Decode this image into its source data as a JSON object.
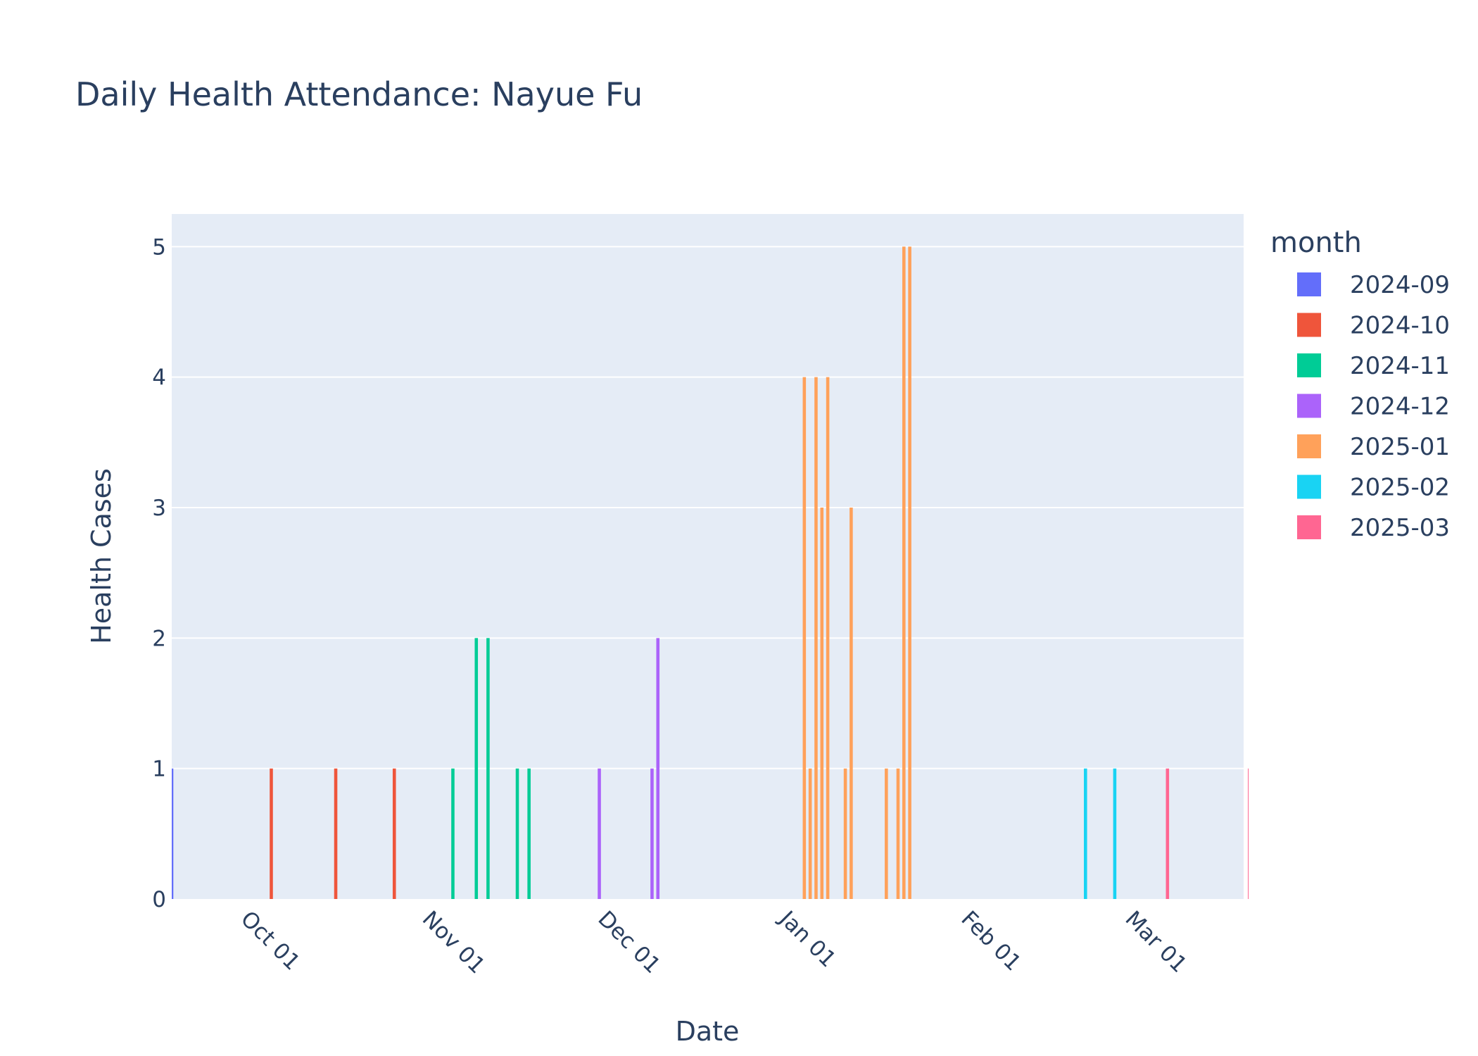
{
  "chart_data": {
    "type": "bar",
    "title": "Daily Health Attendance: Nayue Fu",
    "xlabel": "Date",
    "ylabel": "Health Cases",
    "ylim": [
      0,
      5.25
    ],
    "xlim": [
      "2024-09-17",
      "2025-03-19"
    ],
    "x_ticks": [
      {
        "date": "2024-10-01",
        "label": "Oct 01"
      },
      {
        "date": "2024-11-01",
        "label": "Nov 01"
      },
      {
        "date": "2024-12-01",
        "label": "Dec 01"
      },
      {
        "date": "2025-01-01",
        "label": "Jan 01"
      },
      {
        "date": "2025-02-01",
        "label": "Feb 01"
      },
      {
        "date": "2025-03-01",
        "label": "Mar 01"
      }
    ],
    "y_ticks": [
      0,
      1,
      2,
      3,
      4,
      5
    ],
    "grid": true,
    "legend": {
      "title": "month",
      "position": "right"
    },
    "plot_bg": "#e5ecf6",
    "series": [
      {
        "name": "2024-09",
        "color": "#636efa",
        "points": [
          {
            "x": "2024-09-17",
            "y": 1
          }
        ]
      },
      {
        "name": "2024-10",
        "color": "#ef553b",
        "points": [
          {
            "x": "2024-10-04",
            "y": 1
          },
          {
            "x": "2024-10-15",
            "y": 1
          },
          {
            "x": "2024-10-25",
            "y": 1
          }
        ]
      },
      {
        "name": "2024-11",
        "color": "#00cc96",
        "points": [
          {
            "x": "2024-11-04",
            "y": 1
          },
          {
            "x": "2024-11-08",
            "y": 2
          },
          {
            "x": "2024-11-10",
            "y": 2
          },
          {
            "x": "2024-11-15",
            "y": 1
          },
          {
            "x": "2024-11-17",
            "y": 1
          }
        ]
      },
      {
        "name": "2024-12",
        "color": "#ab63fa",
        "points": [
          {
            "x": "2024-11-29",
            "y": 1
          },
          {
            "x": "2024-12-08",
            "y": 1
          },
          {
            "x": "2024-12-09",
            "y": 2
          }
        ]
      },
      {
        "name": "2025-01",
        "color": "#ffa15a",
        "points": [
          {
            "x": "2025-01-03",
            "y": 4
          },
          {
            "x": "2025-01-04",
            "y": 1
          },
          {
            "x": "2025-01-05",
            "y": 4
          },
          {
            "x": "2025-01-06",
            "y": 3
          },
          {
            "x": "2025-01-07",
            "y": 4
          },
          {
            "x": "2025-01-10",
            "y": 1
          },
          {
            "x": "2025-01-11",
            "y": 3
          },
          {
            "x": "2025-01-17",
            "y": 1
          },
          {
            "x": "2025-01-19",
            "y": 1
          },
          {
            "x": "2025-01-20",
            "y": 5
          },
          {
            "x": "2025-01-21",
            "y": 5
          }
        ]
      },
      {
        "name": "2025-02",
        "color": "#19d3f3",
        "points": [
          {
            "x": "2025-02-20",
            "y": 1
          },
          {
            "x": "2025-02-25",
            "y": 1
          }
        ]
      },
      {
        "name": "2025-03",
        "color": "#ff6692",
        "points": [
          {
            "x": "2025-03-06",
            "y": 1
          },
          {
            "x": "2025-03-20",
            "y": 1
          }
        ]
      }
    ]
  }
}
